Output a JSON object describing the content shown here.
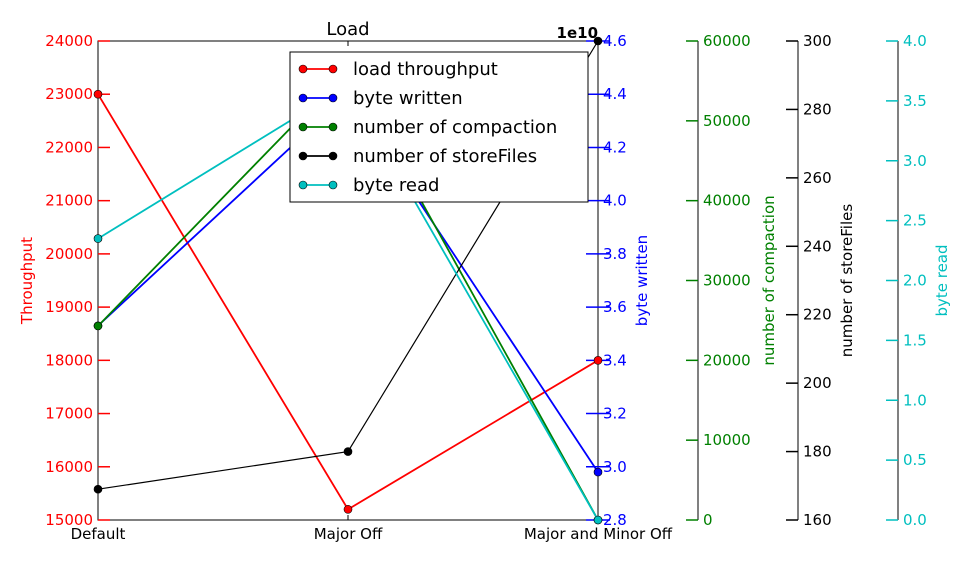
{
  "chart_data": {
    "type": "line",
    "title": "Load",
    "categories": [
      "Default",
      "Major Off",
      "Major and Minor Off"
    ],
    "axes": [
      {
        "id": "throughput",
        "label": "Throughput",
        "color": "#ff0000",
        "ylim": [
          15000,
          24000
        ],
        "ticks": [
          "15000",
          "16000",
          "17000",
          "18000",
          "19000",
          "20000",
          "21000",
          "22000",
          "23000",
          "24000"
        ]
      },
      {
        "id": "bytes_written",
        "label": "byte written",
        "color": "#0000ff",
        "ylim": [
          2.8,
          4.6
        ],
        "offset_text": "1e10",
        "ticks": [
          "2.8",
          "3.0",
          "3.2",
          "3.4",
          "3.6",
          "3.8",
          "4.0",
          "4.2",
          "4.4",
          "4.6"
        ]
      },
      {
        "id": "compaction",
        "label": "number of compaction",
        "color": "#008000",
        "ylim": [
          0,
          60000
        ],
        "ticks": [
          "0",
          "10000",
          "20000",
          "30000",
          "40000",
          "50000",
          "60000"
        ]
      },
      {
        "id": "storefiles",
        "label": "number of storeFiles",
        "color": "#000000",
        "ylim": [
          160,
          300
        ],
        "ticks": [
          "160",
          "180",
          "200",
          "220",
          "240",
          "260",
          "280",
          "300"
        ]
      },
      {
        "id": "byte_read",
        "label": "byte read",
        "color": "#00bfbf",
        "ylim": [
          0,
          4
        ],
        "ticks": [
          "0.0",
          "0.5",
          "1.0",
          "1.5",
          "2.0",
          "2.5",
          "3.0",
          "3.5",
          "4.0"
        ]
      }
    ],
    "series": [
      {
        "name": "load throughput",
        "axis": 0,
        "color": "#ff0000",
        "values": [
          23000,
          15200,
          18000
        ]
      },
      {
        "name": "byte written",
        "axis": 1,
        "color": "#0000ff",
        "values": [
          3.53,
          4.4,
          2.98
        ]
      },
      {
        "name": "number of compaction",
        "axis": 2,
        "color": "#008000",
        "values": [
          24300,
          56500,
          0
        ]
      },
      {
        "name": "number of storeFiles",
        "axis": 3,
        "color": "#000000",
        "values": [
          169,
          180,
          300
        ]
      },
      {
        "name": "byte read",
        "axis": 4,
        "color": "#00bfbf",
        "values": [
          2.35,
          3.63,
          0.0
        ]
      }
    ],
    "legend": {
      "placement": "upper-center",
      "entries": [
        "load throughput",
        "byte written",
        "number of compaction",
        "number of storeFiles",
        "byte read"
      ]
    },
    "grid": false
  }
}
